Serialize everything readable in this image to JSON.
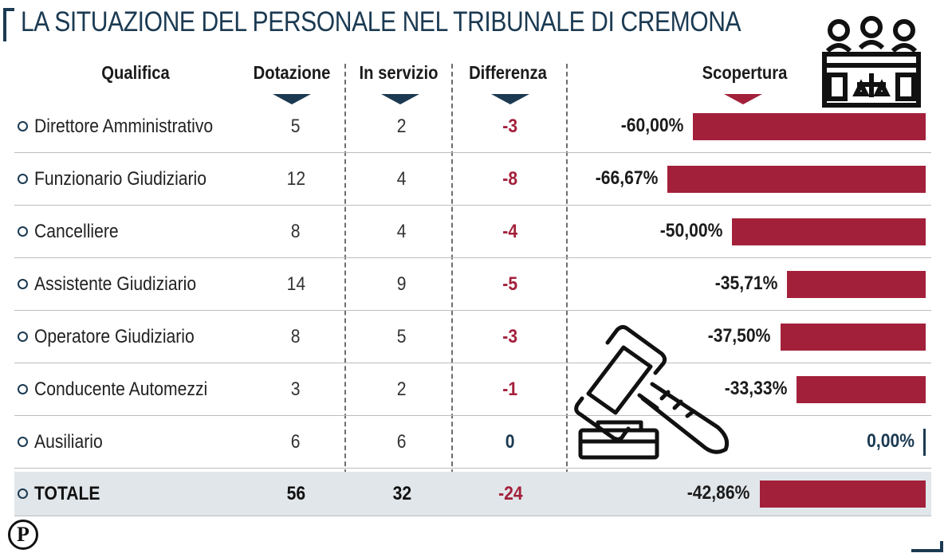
{
  "title": "LA SITUAZIONE DEL PERSONALE NEL TRIBUNALE DI CREMONA",
  "headers": {
    "qualifica": "Qualifica",
    "dotazione": "Dotazione",
    "in_servizio": "In servizio",
    "differenza": "Differenza",
    "scopertura": "Scopertura"
  },
  "logo_letter": "P",
  "icons": {
    "court": "courtroom-judges-icon",
    "gavel": "gavel-icon",
    "logo": "publisher-logo-icon"
  },
  "colors": {
    "navy": "#1b3a52",
    "red": "#a3203a",
    "total_bg": "#e1e6ea"
  },
  "chart_data": {
    "type": "table",
    "columns": [
      "Qualifica",
      "Dotazione",
      "In servizio",
      "Differenza",
      "Scopertura"
    ],
    "rows": [
      {
        "name": "Direttore Amministrativo",
        "dotazione": "5",
        "servizio": "2",
        "differenza": "-3",
        "scopertura_label": "-60,00%",
        "scopertura": -60.0
      },
      {
        "name": "Funzionario Giudiziario",
        "dotazione": "12",
        "servizio": "4",
        "differenza": "-8",
        "scopertura_label": "-66,67%",
        "scopertura": -66.67
      },
      {
        "name": "Cancelliere",
        "dotazione": "8",
        "servizio": "4",
        "differenza": "-4",
        "scopertura_label": "-50,00%",
        "scopertura": -50.0
      },
      {
        "name": "Assistente Giudiziario",
        "dotazione": "14",
        "servizio": "9",
        "differenza": "-5",
        "scopertura_label": "-35,71%",
        "scopertura": -35.71
      },
      {
        "name": "Operatore Giudiziario",
        "dotazione": "8",
        "servizio": "5",
        "differenza": "-3",
        "scopertura_label": "-37,50%",
        "scopertura": -37.5
      },
      {
        "name": "Conducente Automezzi",
        "dotazione": "3",
        "servizio": "2",
        "differenza": "-1",
        "scopertura_label": "-33,33%",
        "scopertura": -33.33
      },
      {
        "name": "Ausiliario",
        "dotazione": "6",
        "servizio": "6",
        "differenza": "0",
        "scopertura_label": "0,00%",
        "scopertura": 0.0
      },
      {
        "name": "TOTALE",
        "dotazione": "56",
        "servizio": "32",
        "differenza": "-24",
        "scopertura_label": "-42,86%",
        "scopertura": -42.86,
        "total": true
      }
    ]
  }
}
